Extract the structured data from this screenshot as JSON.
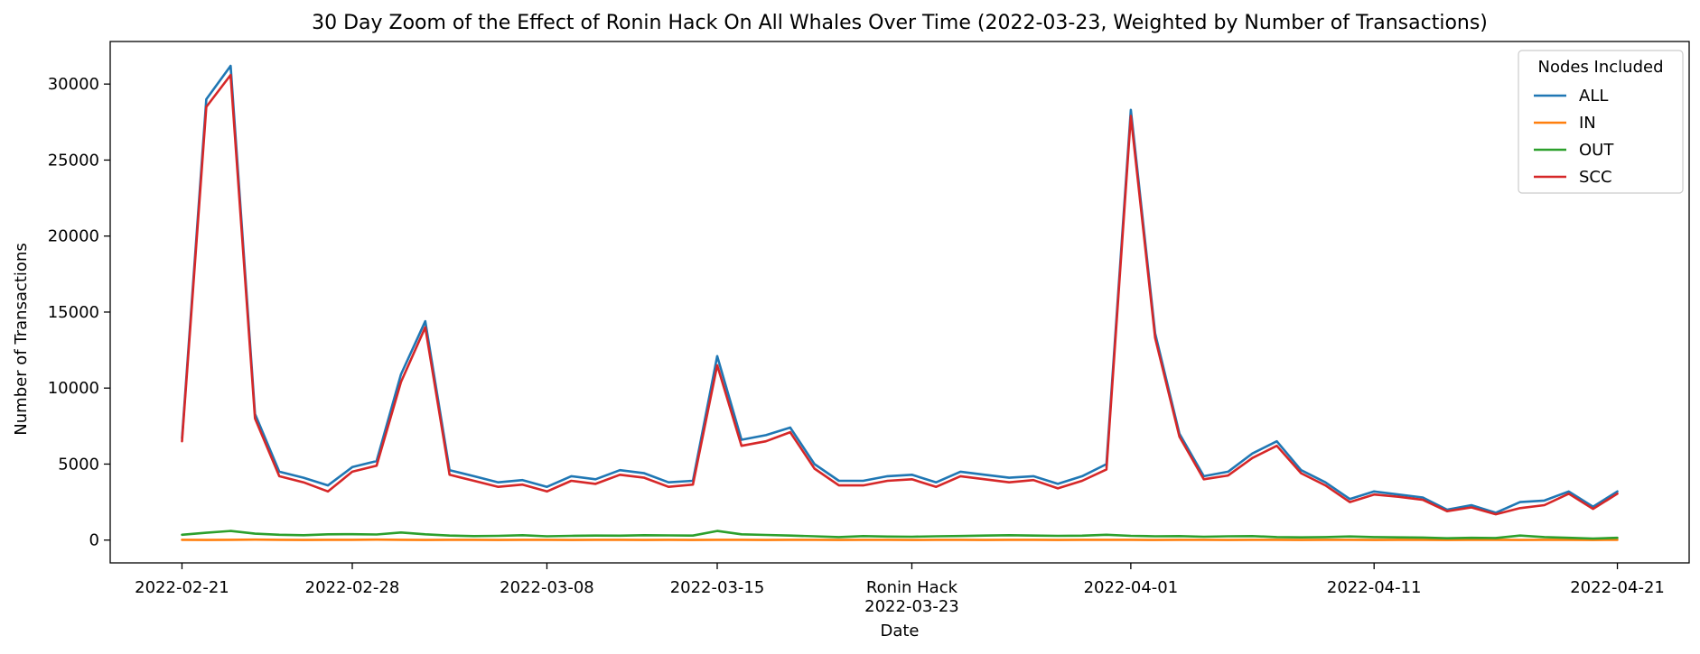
{
  "chart_data": {
    "type": "line",
    "title": "30 Day Zoom of the Effect of Ronin Hack On All Whales Over Time (2022-03-23, Weighted by Number of Transactions)",
    "xlabel": "Date",
    "ylabel": "Number of Transactions",
    "ylim": [
      -1500,
      32800
    ],
    "grid": false,
    "legend": {
      "title": "Nodes Included",
      "placement": "top-right"
    },
    "x": [
      "2022-02-21",
      "2022-02-22",
      "2022-02-23",
      "2022-02-24",
      "2022-02-25",
      "2022-02-26",
      "2022-02-27",
      "2022-02-28",
      "2022-03-01",
      "2022-03-02",
      "2022-03-03",
      "2022-03-04",
      "2022-03-05",
      "2022-03-06",
      "2022-03-07",
      "2022-03-08",
      "2022-03-09",
      "2022-03-10",
      "2022-03-11",
      "2022-03-12",
      "2022-03-13",
      "2022-03-14",
      "2022-03-15",
      "2022-03-16",
      "2022-03-17",
      "2022-03-18",
      "2022-03-19",
      "2022-03-20",
      "2022-03-21",
      "2022-03-22",
      "2022-03-23",
      "2022-03-24",
      "2022-03-25",
      "2022-03-26",
      "2022-03-27",
      "2022-03-28",
      "2022-03-29",
      "2022-03-30",
      "2022-03-31",
      "2022-04-01",
      "2022-04-02",
      "2022-04-03",
      "2022-04-04",
      "2022-04-05",
      "2022-04-06",
      "2022-04-07",
      "2022-04-08",
      "2022-04-09",
      "2022-04-10",
      "2022-04-11",
      "2022-04-12",
      "2022-04-13",
      "2022-04-14",
      "2022-04-15",
      "2022-04-16",
      "2022-04-17",
      "2022-04-18",
      "2022-04-19",
      "2022-04-20",
      "2022-04-21"
    ],
    "x_ticks": [
      "2022-02-21",
      "2022-02-28",
      "2022-03-08",
      "2022-03-15",
      "2022-03-23",
      "2022-04-01",
      "2022-04-11",
      "2022-04-21"
    ],
    "x_tick_labels": [
      "2022-02-21",
      "2022-02-28",
      "2022-03-08",
      "2022-03-15",
      "2022-03-23",
      "2022-04-01",
      "2022-04-11",
      "2022-04-21"
    ],
    "annotation": {
      "x": "2022-03-23",
      "text": "Ronin Hack"
    },
    "y_ticks": [
      0,
      5000,
      10000,
      15000,
      20000,
      25000,
      30000
    ],
    "y_tick_labels": [
      "0",
      "5000",
      "10000",
      "15000",
      "20000",
      "25000",
      "30000"
    ],
    "series": [
      {
        "name": "ALL",
        "color": "#1f77b4",
        "values": [
          6700,
          29000,
          31200,
          8300,
          4500,
          4100,
          3600,
          4800,
          5200,
          10900,
          14400,
          4600,
          4200,
          3800,
          3950,
          3500,
          4200,
          4000,
          4600,
          4400,
          3800,
          3900,
          12100,
          6600,
          6900,
          7400,
          5000,
          3900,
          3900,
          4200,
          4300,
          3800,
          4500,
          4300,
          4100,
          4200,
          3700,
          4200,
          5000,
          28300,
          13600,
          7000,
          4200,
          4500,
          5700,
          6500,
          4600,
          3800,
          2700,
          3200,
          3000,
          2800,
          2000,
          2300,
          1800,
          2500,
          2600,
          3200,
          2200,
          3200
        ]
      },
      {
        "name": "IN",
        "color": "#ff7f0e",
        "values": [
          20,
          10,
          20,
          30,
          20,
          10,
          20,
          20,
          30,
          20,
          10,
          20,
          20,
          10,
          20,
          20,
          10,
          20,
          20,
          10,
          20,
          10,
          20,
          20,
          10,
          20,
          20,
          10,
          20,
          20,
          10,
          20,
          20,
          10,
          20,
          20,
          10,
          20,
          20,
          20,
          10,
          20,
          20,
          10,
          20,
          20,
          10,
          20,
          20,
          10,
          20,
          20,
          10,
          20,
          20,
          10,
          20,
          20,
          10,
          20
        ]
      },
      {
        "name": "OUT",
        "color": "#2ca02c",
        "values": [
          350,
          480,
          600,
          420,
          350,
          320,
          380,
          390,
          370,
          500,
          380,
          300,
          260,
          280,
          320,
          250,
          280,
          300,
          290,
          320,
          310,
          300,
          600,
          380,
          340,
          300,
          250,
          200,
          260,
          230,
          220,
          250,
          270,
          300,
          320,
          300,
          280,
          290,
          350,
          280,
          250,
          260,
          220,
          250,
          260,
          200,
          180,
          200,
          240,
          200,
          180,
          170,
          120,
          150,
          140,
          300,
          200,
          150,
          100,
          150
        ]
      },
      {
        "name": "SCC",
        "color": "#d62728",
        "values": [
          6500,
          28500,
          30600,
          8000,
          4200,
          3800,
          3200,
          4500,
          4900,
          10400,
          14000,
          4300,
          3900,
          3500,
          3650,
          3200,
          3900,
          3700,
          4300,
          4100,
          3500,
          3650,
          11500,
          6200,
          6500,
          7100,
          4700,
          3600,
          3600,
          3900,
          4000,
          3500,
          4200,
          4000,
          3800,
          3950,
          3400,
          3900,
          4650,
          27900,
          13300,
          6800,
          4000,
          4250,
          5400,
          6200,
          4400,
          3600,
          2500,
          3000,
          2850,
          2650,
          1900,
          2150,
          1700,
          2100,
          2300,
          3050,
          2050,
          3050
        ]
      }
    ]
  }
}
